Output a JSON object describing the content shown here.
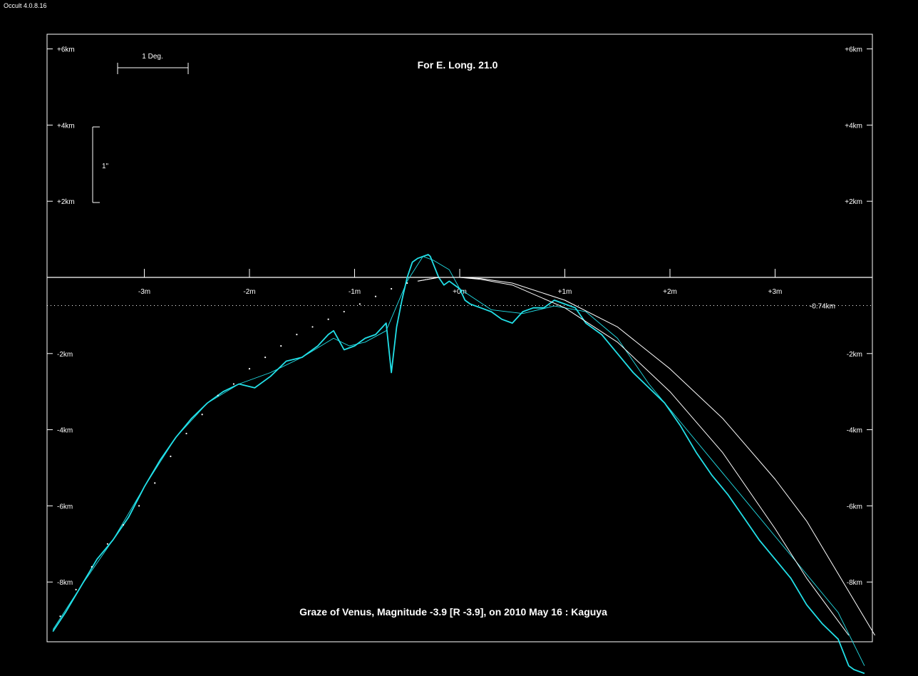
{
  "app": {
    "title": "Occult 4.0.8.16"
  },
  "colors": {
    "background": "#000000",
    "axes": "#ffffff",
    "profile": "#22e0e8",
    "limits": "#ffffff"
  },
  "chart_data": {
    "type": "line",
    "title": "For E. Long. 21.0",
    "subtitle": "Graze of  Venus,  Magnitude -3.9 [R -3.9],  on 2010 May 16  :  Kaguya",
    "xlabel": "",
    "ylabel": "",
    "x_unit": "minutes",
    "y_unit": "km",
    "xlim": [
      -3.9,
      4.0
    ],
    "ylim": [
      -9.7,
      6.5
    ],
    "x_ticks": [
      "-3m",
      "-2m",
      "-1m",
      "+0m",
      "+1m",
      "+2m",
      "+3m"
    ],
    "y_ticks_left": [
      "+6km",
      "+4km",
      "+2km",
      "-2km",
      "-4km",
      "-6km",
      "-8km"
    ],
    "y_ticks_right": [
      "+6km",
      "+4km",
      "+2km",
      "-2km",
      "-4km",
      "-6km",
      "-8km"
    ],
    "reference_line": {
      "y": -0.74,
      "label": "-0.74km",
      "style": "dotted"
    },
    "scale_bars": {
      "horizontal_label": "1 Deg.",
      "vertical_label": "1\""
    },
    "grid": false,
    "series": [
      {
        "style": "profile",
        "x": [
          -3.87,
          -3.75,
          -3.6,
          -3.45,
          -3.3,
          -3.15,
          -3.0,
          -2.85,
          -2.7,
          -2.55,
          -2.4,
          -2.25,
          -2.1,
          -1.95,
          -1.8,
          -1.65,
          -1.5,
          -1.35,
          -1.25,
          -1.2,
          -1.1,
          -1.0,
          -0.9,
          -0.8,
          -0.7,
          -0.65,
          -0.6,
          -0.55,
          -0.5,
          -0.45,
          -0.4,
          -0.3,
          -0.28,
          -0.2,
          -0.15,
          -0.1,
          0.0,
          0.05,
          0.1,
          0.2,
          0.3,
          0.4,
          0.5,
          0.6,
          0.7,
          0.8,
          0.9,
          1.0,
          1.1,
          1.2,
          1.35,
          1.5,
          1.65,
          1.8,
          1.95,
          2.1,
          2.25,
          2.4,
          2.55,
          2.7,
          2.85,
          3.0,
          3.15,
          3.3,
          3.45,
          3.6,
          3.7,
          3.75,
          3.85
        ],
        "y": [
          -9.3,
          -8.8,
          -8.1,
          -7.4,
          -6.9,
          -6.3,
          -5.5,
          -4.8,
          -4.2,
          -3.7,
          -3.3,
          -3.0,
          -2.8,
          -2.9,
          -2.6,
          -2.2,
          -2.1,
          -1.8,
          -1.5,
          -1.4,
          -1.9,
          -1.8,
          -1.6,
          -1.5,
          -1.2,
          -2.5,
          -1.3,
          -0.6,
          0.0,
          0.4,
          0.5,
          0.6,
          0.55,
          0.0,
          -0.2,
          -0.1,
          -0.3,
          -0.6,
          -0.7,
          -0.8,
          -0.9,
          -1.1,
          -1.2,
          -0.9,
          -0.8,
          -0.8,
          -0.6,
          -0.7,
          -0.8,
          -1.2,
          -1.5,
          -2.0,
          -2.5,
          -2.9,
          -3.3,
          -3.9,
          -4.6,
          -5.2,
          -5.7,
          -6.3,
          -6.9,
          -7.4,
          -7.9,
          -8.6,
          -9.1,
          -9.5,
          -10.2,
          -10.3,
          -10.4
        ]
      },
      {
        "style": "smoothed",
        "x": [
          -3.87,
          -3.6,
          -3.3,
          -3.0,
          -2.7,
          -2.4,
          -2.1,
          -1.8,
          -1.5,
          -1.2,
          -1.05,
          -0.9,
          -0.7,
          -0.5,
          -0.35,
          -0.25,
          -0.1,
          0.0,
          0.3,
          0.6,
          0.9,
          1.2,
          1.5,
          1.8,
          2.1,
          2.4,
          2.7,
          3.0,
          3.3,
          3.6,
          3.85
        ],
        "y": [
          -9.25,
          -8.1,
          -6.9,
          -5.5,
          -4.2,
          -3.3,
          -2.8,
          -2.5,
          -2.1,
          -1.6,
          -1.8,
          -1.7,
          -1.4,
          -0.1,
          0.55,
          0.45,
          0.2,
          -0.3,
          -0.85,
          -0.95,
          -0.75,
          -0.9,
          -1.6,
          -2.8,
          -3.8,
          -4.8,
          -5.8,
          -6.8,
          -7.8,
          -8.8,
          -10.2
        ]
      },
      {
        "style": "limit",
        "x": [
          -0.4,
          -0.2,
          0.0,
          0.2,
          0.5,
          1.0,
          1.5,
          2.0,
          2.5,
          3.0,
          3.3,
          3.7
        ],
        "y": [
          -0.1,
          0.0,
          0.0,
          -0.05,
          -0.2,
          -0.8,
          -1.7,
          -3.0,
          -4.6,
          -6.6,
          -7.9,
          -9.4
        ]
      },
      {
        "style": "limit",
        "x": [
          -0.4,
          -0.2,
          0.0,
          0.2,
          0.5,
          1.0,
          1.5,
          2.0,
          2.5,
          3.0,
          3.3,
          3.95
        ],
        "y": [
          -0.1,
          0.0,
          0.0,
          -0.03,
          -0.15,
          -0.6,
          -1.3,
          -2.4,
          -3.7,
          -5.3,
          -6.4,
          -9.4
        ]
      },
      {
        "style": "dots",
        "x": [
          -3.8,
          -3.65,
          -3.5,
          -3.35,
          -3.2,
          -3.05,
          -2.9,
          -2.75,
          -2.6,
          -2.45,
          -2.3,
          -2.15,
          -2.0,
          -1.85,
          -1.7,
          -1.55,
          -1.4,
          -1.25,
          -1.1,
          -0.95,
          -0.8,
          -0.65,
          -0.5
        ],
        "y": [
          -8.9,
          -8.2,
          -7.6,
          -7.0,
          -6.5,
          -6.0,
          -5.4,
          -4.7,
          -4.1,
          -3.6,
          -3.1,
          -2.8,
          -2.4,
          -2.1,
          -1.8,
          -1.5,
          -1.3,
          -1.1,
          -0.9,
          -0.7,
          -0.5,
          -0.3,
          -0.15
        ]
      }
    ]
  }
}
